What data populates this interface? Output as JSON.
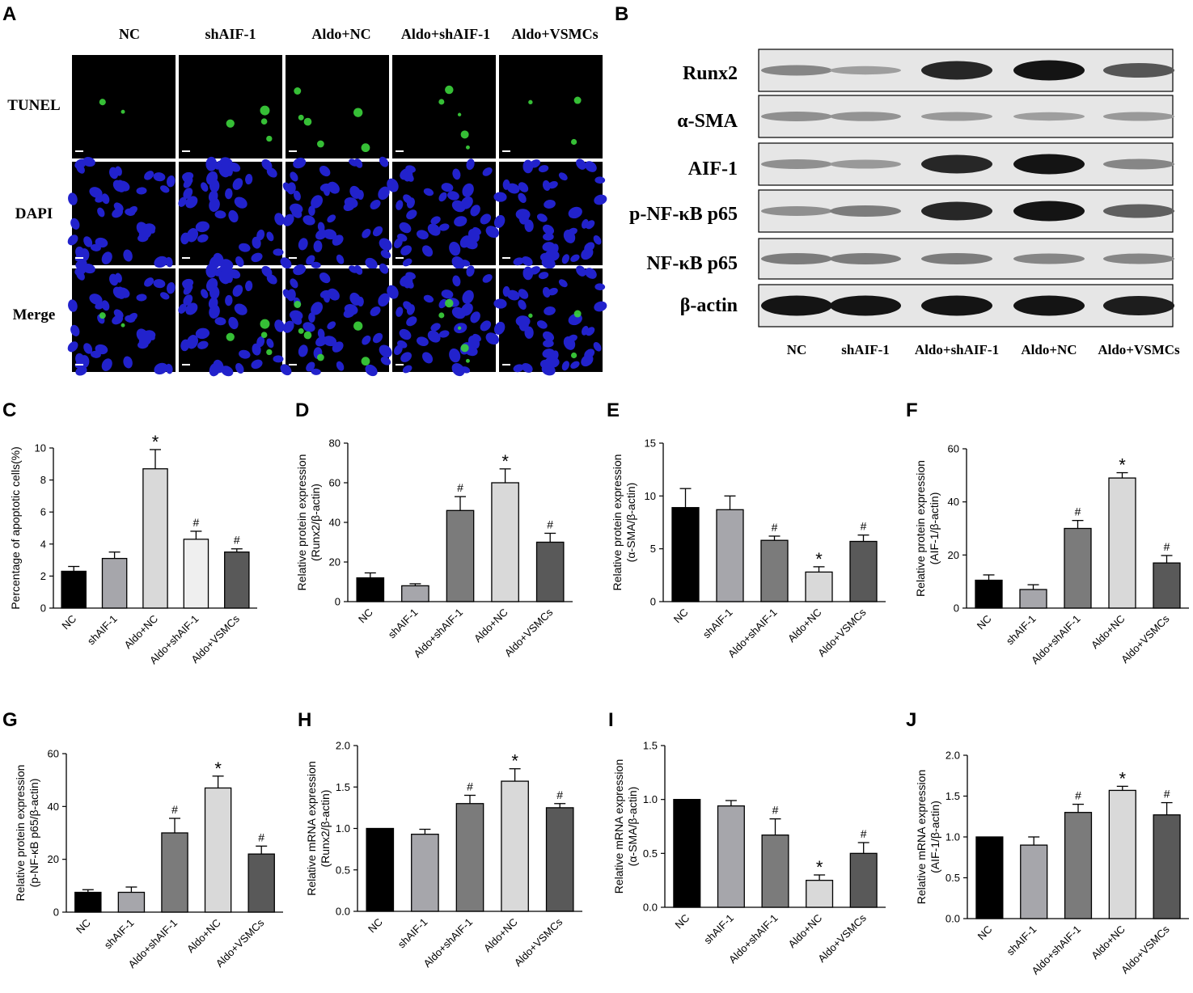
{
  "panel_letters": [
    "A",
    "B",
    "C",
    "D",
    "E",
    "F",
    "G",
    "H",
    "I",
    "J"
  ],
  "panel_a": {
    "columns": [
      "NC",
      "shAIF-1",
      "Aldo+NC",
      "Aldo+shAIF-1",
      "Aldo+VSMCs"
    ],
    "rows": [
      "TUNEL",
      "DAPI",
      "Merge"
    ]
  },
  "panel_b": {
    "bands": [
      "Runx2",
      "α-SMA",
      "AIF-1",
      "p-NF-κB p65",
      "NF-κB p65",
      "β-actin"
    ],
    "lanes": [
      "NC",
      "shAIF-1",
      "Aldo+shAIF-1",
      "Aldo+NC",
      "Aldo+VSMCs"
    ],
    "band_intensity": [
      [
        0.35,
        0.22,
        0.85,
        0.95,
        0.6
      ],
      [
        0.3,
        0.28,
        0.25,
        0.22,
        0.25
      ],
      [
        0.3,
        0.25,
        0.85,
        0.95,
        0.35
      ],
      [
        0.3,
        0.4,
        0.85,
        0.95,
        0.55
      ],
      [
        0.4,
        0.4,
        0.4,
        0.35,
        0.35
      ],
      [
        0.95,
        0.95,
        0.95,
        0.95,
        0.9
      ]
    ]
  },
  "colors": {
    "NC": "#000000",
    "shAIF-1": "#a6a6ab",
    "Aldo+shAIF-1": "#7b7b7b",
    "Aldo+NC": "#d9d9d9",
    "Aldo+VSMCs": "#595959",
    "Aldo+shAIF-1_C": "#efefef",
    "tunel": "#3cd43c",
    "dapi": "#2222cc"
  },
  "chart_data": [
    {
      "id": "C",
      "type": "bar",
      "ylabel": "Percentage of apoptotic cells(%)",
      "categories": [
        "NC",
        "shAIF-1",
        "Aldo+NC",
        "Aldo+shAIF-1",
        "Aldo+VSMCs"
      ],
      "values": [
        2.3,
        3.1,
        8.7,
        4.3,
        3.5
      ],
      "errors": [
        0.3,
        0.4,
        1.2,
        0.5,
        0.2
      ],
      "marks": [
        "",
        "",
        "*",
        "#",
        "#"
      ],
      "ylim": [
        0,
        10
      ],
      "yticks": [
        0,
        2,
        4,
        6,
        8,
        10
      ]
    },
    {
      "id": "D",
      "type": "bar",
      "ylabel": "Relative protein expression",
      "ylabel2": "(Runx2/β-actin)",
      "categories": [
        "NC",
        "shAIF-1",
        "Aldo+shAIF-1",
        "Aldo+NC",
        "Aldo+VSMCs"
      ],
      "values": [
        12,
        8,
        46,
        60,
        30
      ],
      "errors": [
        2.5,
        1,
        7,
        7,
        4.5
      ],
      "marks": [
        "",
        "",
        "#",
        "*",
        "#"
      ],
      "ylim": [
        0,
        80
      ],
      "yticks": [
        0,
        20,
        40,
        60,
        80
      ]
    },
    {
      "id": "E",
      "type": "bar",
      "ylabel": "Relative protein expression",
      "ylabel2": "(α-SMA/β-actin)",
      "categories": [
        "NC",
        "shAIF-1",
        "Aldo+shAIF-1",
        "Aldo+NC",
        "Aldo+VSMCs"
      ],
      "values": [
        8.9,
        8.7,
        5.8,
        2.8,
        5.7
      ],
      "errors": [
        1.8,
        1.3,
        0.4,
        0.5,
        0.6
      ],
      "marks": [
        "",
        "",
        "#",
        "*",
        "#"
      ],
      "ylim": [
        0,
        15
      ],
      "yticks": [
        0,
        5,
        10,
        15
      ]
    },
    {
      "id": "F",
      "type": "bar",
      "ylabel": "Relative protein expression",
      "ylabel2": "(AIF-1/β-actin)",
      "categories": [
        "NC",
        "shAIF-1",
        "Aldo+shAIF-1",
        "Aldo+NC",
        "Aldo+VSMCs"
      ],
      "values": [
        10.5,
        7,
        30,
        49,
        17
      ],
      "errors": [
        2,
        1.8,
        3,
        2,
        2.8
      ],
      "marks": [
        "",
        "",
        "#",
        "*",
        "#"
      ],
      "ylim": [
        0,
        60
      ],
      "yticks": [
        0,
        20,
        40,
        60
      ]
    },
    {
      "id": "G",
      "type": "bar",
      "ylabel": "Relative protein expression",
      "ylabel2": "(p-NF-κB p65/β-actin)",
      "categories": [
        "NC",
        "shAIF-1",
        "Aldo+shAIF-1",
        "Aldo+NC",
        "Aldo+VSMCs"
      ],
      "values": [
        7.5,
        7.5,
        30,
        47,
        22
      ],
      "errors": [
        1,
        2,
        5.5,
        4.5,
        3
      ],
      "marks": [
        "",
        "",
        "#",
        "*",
        "#"
      ],
      "ylim": [
        0,
        60
      ],
      "yticks": [
        0,
        20,
        40,
        60
      ]
    },
    {
      "id": "H",
      "type": "bar",
      "ylabel": "Relative mRNA expression",
      "ylabel2": "(Runx2/β-actin)",
      "categories": [
        "NC",
        "shAIF-1",
        "Aldo+shAIF-1",
        "Aldo+NC",
        "Aldo+VSMCs"
      ],
      "values": [
        1.0,
        0.93,
        1.3,
        1.57,
        1.25
      ],
      "errors": [
        0,
        0.06,
        0.1,
        0.15,
        0.05
      ],
      "marks": [
        "",
        "",
        "#",
        "*",
        "#"
      ],
      "ylim": [
        0,
        2.0
      ],
      "yticks": [
        "0.0",
        "0.5",
        "1.0",
        "1.5",
        "2.0"
      ]
    },
    {
      "id": "I",
      "type": "bar",
      "ylabel": "Relative mRNA expression",
      "ylabel2": "(α-SMA/β-actin)",
      "categories": [
        "NC",
        "shAIF-1",
        "Aldo+shAIF-1",
        "Aldo+NC",
        "Aldo+VSMCs"
      ],
      "values": [
        1.0,
        0.94,
        0.67,
        0.25,
        0.5
      ],
      "errors": [
        0,
        0.05,
        0.15,
        0.05,
        0.1
      ],
      "marks": [
        "",
        "",
        "#",
        "*",
        "#"
      ],
      "ylim": [
        0,
        1.5
      ],
      "yticks": [
        "0.0",
        "0.5",
        "1.0",
        "1.5"
      ]
    },
    {
      "id": "J",
      "type": "bar",
      "ylabel": "Relative mRNA expression",
      "ylabel2": "(AIF-1/β-actin)",
      "categories": [
        "NC",
        "shAIF-1",
        "Aldo+shAIF-1",
        "Aldo+NC",
        "Aldo+VSMCs"
      ],
      "values": [
        1.0,
        0.9,
        1.3,
        1.57,
        1.27
      ],
      "errors": [
        0,
        0.1,
        0.1,
        0.05,
        0.15
      ],
      "marks": [
        "",
        "",
        "#",
        "*",
        "#"
      ],
      "ylim": [
        0,
        2.0
      ],
      "yticks": [
        "0.0",
        "0.5",
        "1.0",
        "1.5",
        "2.0"
      ]
    }
  ]
}
